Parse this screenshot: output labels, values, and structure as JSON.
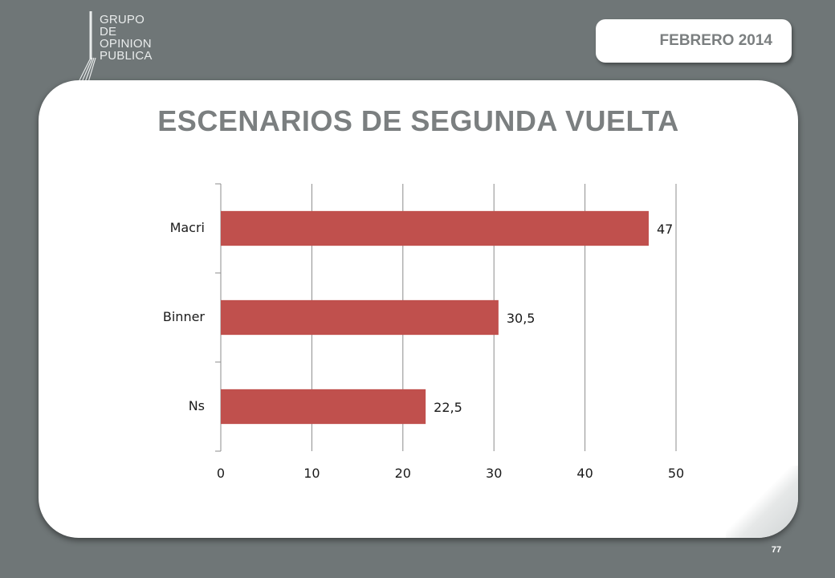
{
  "logo": {
    "lines": [
      "GRUPO",
      "DE",
      "OPINION",
      "PUBLICA"
    ]
  },
  "header": {
    "date": "FEBRERO 2014"
  },
  "slide": {
    "title": "ESCENARIOS DE SEGUNDA VUELTA",
    "page_number": "77"
  },
  "colors": {
    "background": "#6f7677",
    "bar": "#c0504d",
    "title": "#7b7f80"
  },
  "chart_data": {
    "type": "bar",
    "orientation": "horizontal",
    "categories": [
      "Macri",
      "Binner",
      "Ns"
    ],
    "values": [
      47,
      30.5,
      22.5
    ],
    "data_labels": [
      "47",
      "30,5",
      "22,5"
    ],
    "xlim": [
      0,
      50
    ],
    "xticks": [
      0,
      10,
      20,
      30,
      40,
      50
    ],
    "grid": "vertical",
    "legend": "none"
  }
}
